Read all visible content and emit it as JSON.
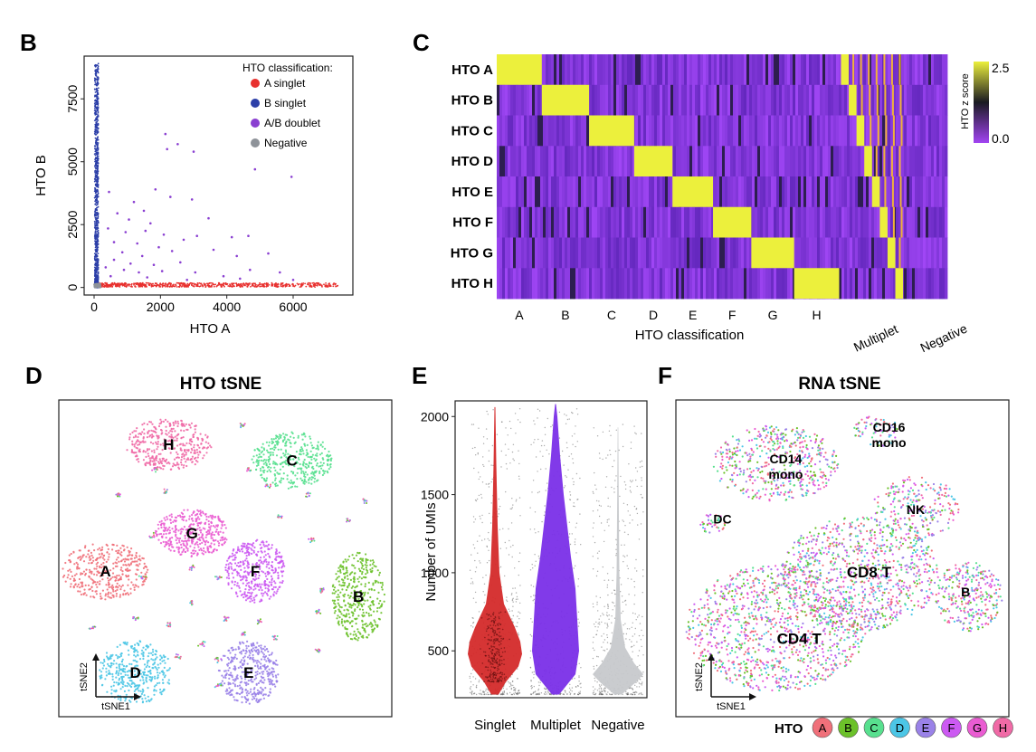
{
  "panels": {
    "B": {
      "letter": "B",
      "chart_data": {
        "type": "scatter",
        "xlabel": "HTO A",
        "ylabel": "HTO B",
        "xlim": [
          -300,
          7800
        ],
        "ylim": [
          -300,
          9200
        ],
        "xticks": [
          "0",
          "2000",
          "4000",
          "6000"
        ],
        "yticks": [
          "0",
          "2500",
          "5000",
          "7500"
        ],
        "legend_title": "HTO classification:",
        "legend_position": "top-right",
        "series": [
          {
            "name": "A singlet",
            "color": "#e8302e"
          },
          {
            "name": "B singlet",
            "color": "#2c3fa8"
          },
          {
            "name": "A/B doublet",
            "color": "#8a3fd1"
          },
          {
            "name": "Negative",
            "color": "#8e9399"
          }
        ],
        "doublet_points": [
          {
            "x": 2150,
            "y": 6100
          },
          {
            "x": 2520,
            "y": 5700
          },
          {
            "x": 2200,
            "y": 5500
          },
          {
            "x": 3000,
            "y": 5400
          },
          {
            "x": 4850,
            "y": 4700
          },
          {
            "x": 5950,
            "y": 4400
          },
          {
            "x": 450,
            "y": 3800
          },
          {
            "x": 1850,
            "y": 3900
          },
          {
            "x": 2300,
            "y": 3600
          },
          {
            "x": 2950,
            "y": 3500
          },
          {
            "x": 1200,
            "y": 3400
          },
          {
            "x": 1500,
            "y": 3050
          },
          {
            "x": 700,
            "y": 2950
          },
          {
            "x": 1050,
            "y": 2700
          },
          {
            "x": 3450,
            "y": 2750
          },
          {
            "x": 1700,
            "y": 2550
          },
          {
            "x": 420,
            "y": 2350
          },
          {
            "x": 950,
            "y": 2200
          },
          {
            "x": 1550,
            "y": 2250
          },
          {
            "x": 2100,
            "y": 2100
          },
          {
            "x": 2700,
            "y": 1900
          },
          {
            "x": 3100,
            "y": 2050
          },
          {
            "x": 4150,
            "y": 2000
          },
          {
            "x": 4650,
            "y": 2050
          },
          {
            "x": 600,
            "y": 1800
          },
          {
            "x": 1300,
            "y": 1750
          },
          {
            "x": 1950,
            "y": 1600
          },
          {
            "x": 2350,
            "y": 1450
          },
          {
            "x": 850,
            "y": 1400
          },
          {
            "x": 1450,
            "y": 1250
          },
          {
            "x": 3600,
            "y": 1500
          },
          {
            "x": 4300,
            "y": 1250
          },
          {
            "x": 5250,
            "y": 1350
          },
          {
            "x": 600,
            "y": 1100
          },
          {
            "x": 1100,
            "y": 950
          },
          {
            "x": 1800,
            "y": 900
          },
          {
            "x": 2600,
            "y": 1000
          },
          {
            "x": 350,
            "y": 800
          },
          {
            "x": 900,
            "y": 700
          },
          {
            "x": 1350,
            "y": 600
          },
          {
            "x": 2050,
            "y": 650
          },
          {
            "x": 3050,
            "y": 600
          },
          {
            "x": 4700,
            "y": 700
          },
          {
            "x": 5600,
            "y": 600
          },
          {
            "x": 3900,
            "y": 450
          },
          {
            "x": 6000,
            "y": 300
          },
          {
            "x": 500,
            "y": 450
          },
          {
            "x": 1600,
            "y": 400
          },
          {
            "x": 2800,
            "y": 300
          },
          {
            "x": 4400,
            "y": 350
          }
        ]
      }
    },
    "C": {
      "letter": "C",
      "chart_data": {
        "type": "heatmap",
        "rows": [
          "HTO A",
          "HTO B",
          "HTO C",
          "HTO D",
          "HTO E",
          "HTO F",
          "HTO G",
          "HTO H"
        ],
        "columns": [
          "A",
          "B",
          "C",
          "D",
          "E",
          "F",
          "G",
          "H",
          "Multiplet",
          "Negative"
        ],
        "column_widths": [
          1.0,
          1.05,
          1.0,
          0.85,
          0.9,
          0.85,
          0.95,
          1.0,
          1.55,
          0.85
        ],
        "xlabel": "HTO classification",
        "colorbar_label": "HTO z score",
        "colorbar_range": [
          0.0,
          2.5
        ],
        "colorbar_ticks": [
          "2.5",
          "0.0"
        ],
        "colors": {
          "high": "#ecf03c",
          "mid": "#2a1d4a",
          "low": "#9b3df0"
        }
      }
    },
    "D": {
      "letter": "D",
      "chart_data": {
        "type": "scatter",
        "title": "HTO tSNE",
        "xlabel": "tSNE1",
        "ylabel": "tSNE2",
        "clusters": [
          {
            "name": "H",
            "color": "#f06aa6",
            "x": 0.33,
            "y": 0.86,
            "rx": 0.13,
            "ry": 0.08
          },
          {
            "name": "C",
            "color": "#58e08f",
            "x": 0.7,
            "y": 0.81,
            "rx": 0.12,
            "ry": 0.09
          },
          {
            "name": "G",
            "color": "#ea5cd2",
            "x": 0.4,
            "y": 0.58,
            "rx": 0.11,
            "ry": 0.075
          },
          {
            "name": "A",
            "color": "#f0707a",
            "x": 0.14,
            "y": 0.46,
            "rx": 0.13,
            "ry": 0.09
          },
          {
            "name": "F",
            "color": "#cc5af2",
            "x": 0.59,
            "y": 0.46,
            "rx": 0.09,
            "ry": 0.1
          },
          {
            "name": "B",
            "color": "#6cc12a",
            "x": 0.9,
            "y": 0.38,
            "rx": 0.08,
            "ry": 0.14
          },
          {
            "name": "D",
            "color": "#4cc6e6",
            "x": 0.23,
            "y": 0.14,
            "rx": 0.11,
            "ry": 0.1
          },
          {
            "name": "E",
            "color": "#9a82e8",
            "x": 0.57,
            "y": 0.14,
            "rx": 0.09,
            "ry": 0.1
          }
        ]
      }
    },
    "E": {
      "letter": "E",
      "chart_data": {
        "type": "violin",
        "categories": [
          "Singlet",
          "Multiplet",
          "Negative"
        ],
        "ylabel": "Number of UMIs",
        "yticks": [
          "500",
          "1000",
          "1500",
          "2000"
        ],
        "ylim": [
          200,
          2100
        ],
        "colors": {
          "Singlet": "#d42a2a",
          "Multiplet": "#7a2fe8",
          "Negative": "#c7c9cc"
        }
      }
    },
    "F": {
      "letter": "F",
      "chart_data": {
        "type": "scatter",
        "title": "RNA tSNE",
        "xlabel": "tSNE1",
        "ylabel": "tSNE2",
        "labels": [
          {
            "text": "CD14\nmono",
            "x": 0.33,
            "y": 0.8
          },
          {
            "text": "CD16\nmono",
            "x": 0.64,
            "y": 0.9
          },
          {
            "text": "DC",
            "x": 0.14,
            "y": 0.61
          },
          {
            "text": "NK",
            "x": 0.72,
            "y": 0.64
          },
          {
            "text": "CD8 T",
            "x": 0.58,
            "y": 0.44
          },
          {
            "text": "B",
            "x": 0.87,
            "y": 0.38
          },
          {
            "text": "CD4 T",
            "x": 0.37,
            "y": 0.23
          }
        ],
        "legend_title": "HTO",
        "legend": [
          {
            "name": "A",
            "color": "#f0707a"
          },
          {
            "name": "B",
            "color": "#6cc12a"
          },
          {
            "name": "C",
            "color": "#58e08f"
          },
          {
            "name": "D",
            "color": "#4cc6e6"
          },
          {
            "name": "E",
            "color": "#9a82e8"
          },
          {
            "name": "F",
            "color": "#cc5af2"
          },
          {
            "name": "G",
            "color": "#ea5cd2"
          },
          {
            "name": "H",
            "color": "#f06aa6"
          }
        ]
      }
    }
  }
}
